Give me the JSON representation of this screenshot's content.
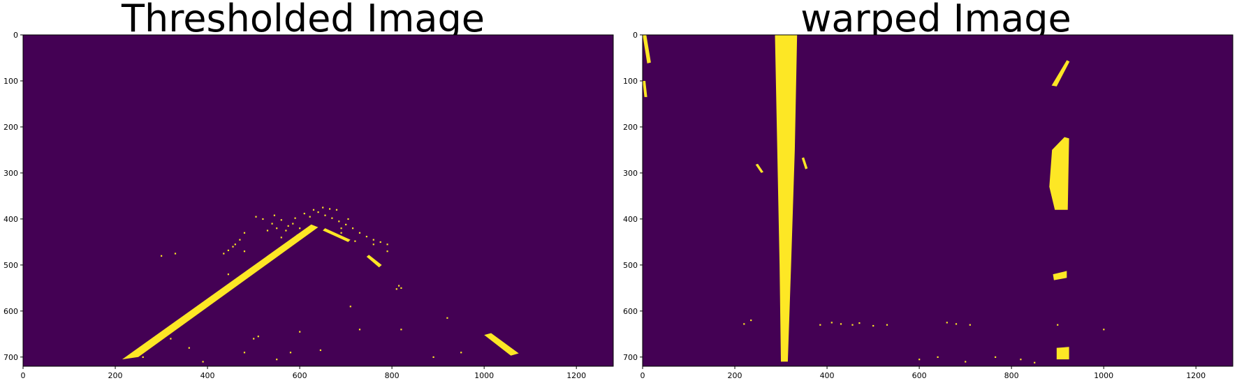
{
  "colors": {
    "background": "#440154",
    "foreground": "#fde725",
    "axis": "#000000"
  },
  "chart_data": [
    {
      "type": "heatmap",
      "title": "Thresholded Image",
      "colormap": "viridis",
      "binary": true,
      "xlim": [
        0,
        1280
      ],
      "ylim": [
        720,
        0
      ],
      "y_inverted": true,
      "xticks": [
        0,
        200,
        400,
        600,
        800,
        1000,
        1200
      ],
      "yticks": [
        0,
        100,
        200,
        300,
        400,
        500,
        600,
        700
      ],
      "xtick_labels": [
        "0",
        "200",
        "400",
        "600",
        "800",
        "1000",
        "1200"
      ],
      "ytick_labels": [
        "0",
        "100",
        "200",
        "300",
        "400",
        "500",
        "600",
        "700"
      ],
      "grid": false,
      "features": [
        {
          "name": "left lane line",
          "kind": "band",
          "points": [
            [
              215,
              705
            ],
            [
              250,
              700
            ],
            [
              640,
              418
            ],
            [
              625,
              412
            ]
          ]
        },
        {
          "name": "right lane line near",
          "kind": "band",
          "points": [
            [
              1000,
              652
            ],
            [
              1015,
              648
            ],
            [
              1075,
              692
            ],
            [
              1058,
              697
            ]
          ]
        },
        {
          "name": "right lane line far",
          "kind": "band",
          "points": [
            [
              650,
              425
            ],
            [
              655,
              420
            ],
            [
              710,
              445
            ],
            [
              705,
              450
            ]
          ]
        },
        {
          "name": "right lane dash",
          "kind": "band",
          "points": [
            [
              745,
              482
            ],
            [
              750,
              478
            ],
            [
              778,
              500
            ],
            [
              772,
              505
            ]
          ]
        },
        {
          "name": "horizon cluster",
          "kind": "scatter",
          "points": [
            [
              505,
              395
            ],
            [
              520,
              400
            ],
            [
              540,
              410
            ],
            [
              560,
              402
            ],
            [
              575,
              415
            ],
            [
              590,
              398
            ],
            [
              600,
              420
            ],
            [
              610,
              388
            ],
            [
              622,
              395
            ],
            [
              630,
              380
            ],
            [
              640,
              385
            ],
            [
              655,
              392
            ],
            [
              670,
              398
            ],
            [
              685,
              405
            ],
            [
              700,
              412
            ],
            [
              715,
              420
            ],
            [
              730,
              430
            ],
            [
              745,
              438
            ],
            [
              760,
              445
            ],
            [
              775,
              450
            ],
            [
              790,
              455
            ],
            [
              480,
              430
            ],
            [
              470,
              445
            ],
            [
              455,
              460
            ],
            [
              445,
              468
            ],
            [
              435,
              475
            ],
            [
              530,
              425
            ],
            [
              550,
              420
            ],
            [
              570,
              425
            ],
            [
              595,
              435
            ],
            [
              612,
              430
            ],
            [
              650,
              375
            ],
            [
              665,
              378
            ],
            [
              680,
              380
            ],
            [
              460,
              455
            ],
            [
              545,
              392
            ],
            [
              585,
              410
            ],
            [
              625,
              425
            ],
            [
              690,
              430
            ],
            [
              720,
              448
            ],
            [
              820,
              550
            ],
            [
              815,
              545
            ],
            [
              810,
              552
            ],
            [
              300,
              480
            ],
            [
              330,
              475
            ],
            [
              480,
              470
            ],
            [
              560,
              440
            ],
            [
              690,
              420
            ],
            [
              705,
              400
            ],
            [
              760,
              455
            ],
            [
              790,
              470
            ]
          ]
        },
        {
          "name": "noise specks",
          "kind": "scatter",
          "points": [
            [
              445,
              520
            ],
            [
              500,
              660
            ],
            [
              510,
              655
            ],
            [
              360,
              680
            ],
            [
              730,
              640
            ],
            [
              920,
              615
            ],
            [
              710,
              590
            ],
            [
              645,
              685
            ],
            [
              320,
              660
            ],
            [
              580,
              690
            ],
            [
              260,
              700
            ],
            [
              390,
              710
            ],
            [
              600,
              645
            ],
            [
              480,
              690
            ],
            [
              550,
              705
            ],
            [
              890,
              700
            ],
            [
              820,
              640
            ],
            [
              950,
              690
            ]
          ]
        }
      ]
    },
    {
      "type": "heatmap",
      "title": "warped Image",
      "colormap": "viridis",
      "binary": true,
      "xlim": [
        0,
        1280
      ],
      "ylim": [
        720,
        0
      ],
      "y_inverted": true,
      "xticks": [
        0,
        200,
        400,
        600,
        800,
        1000,
        1200
      ],
      "yticks": [
        0,
        100,
        200,
        300,
        400,
        500,
        600,
        700
      ],
      "xtick_labels": [
        "0",
        "200",
        "400",
        "600",
        "800",
        "1000",
        "1200"
      ],
      "ytick_labels": [
        "0",
        "100",
        "200",
        "300",
        "400",
        "500",
        "600",
        "700"
      ],
      "grid": false,
      "features": [
        {
          "name": "left lane line",
          "kind": "band",
          "points": [
            [
              287,
              0
            ],
            [
              335,
              0
            ],
            [
              330,
              250
            ],
            [
              322,
              500
            ],
            [
              315,
              710
            ],
            [
              300,
              710
            ],
            [
              297,
              500
            ],
            [
              292,
              250
            ]
          ]
        },
        {
          "name": "right lane upper dash",
          "kind": "band",
          "points": [
            [
              887,
              110
            ],
            [
              920,
              55
            ],
            [
              926,
              58
            ],
            [
              898,
              112
            ]
          ]
        },
        {
          "name": "right lane middle segment",
          "kind": "band",
          "points": [
            [
              888,
              250
            ],
            [
              915,
              222
            ],
            [
              925,
              225
            ],
            [
              922,
              380
            ],
            [
              894,
              380
            ],
            [
              882,
              330
            ]
          ]
        },
        {
          "name": "right lane small dash",
          "kind": "band",
          "points": [
            [
              890,
              520
            ],
            [
              920,
              513
            ],
            [
              920,
              528
            ],
            [
              892,
              533
            ]
          ]
        },
        {
          "name": "right lane bottom blob",
          "kind": "band",
          "points": [
            [
              898,
              680
            ],
            [
              925,
              678
            ],
            [
              925,
              705
            ],
            [
              898,
              705
            ]
          ]
        },
        {
          "name": "left edge streak",
          "kind": "band",
          "points": [
            [
              0,
              0
            ],
            [
              8,
              0
            ],
            [
              18,
              60
            ],
            [
              10,
              62
            ]
          ]
        },
        {
          "name": "left edge streak lower",
          "kind": "band",
          "points": [
            [
              0,
              100
            ],
            [
              6,
              100
            ],
            [
              10,
              135
            ],
            [
              4,
              135
            ]
          ]
        },
        {
          "name": "debris left",
          "kind": "band",
          "points": [
            [
              245,
              282
            ],
            [
              250,
              280
            ],
            [
              262,
              298
            ],
            [
              257,
              300
            ]
          ]
        },
        {
          "name": "debris right",
          "kind": "band",
          "points": [
            [
              345,
              268
            ],
            [
              350,
              266
            ],
            [
              358,
              290
            ],
            [
              353,
              292
            ]
          ]
        },
        {
          "name": "noise specks",
          "kind": "scatter",
          "points": [
            [
              220,
              628
            ],
            [
              385,
              630
            ],
            [
              410,
              625
            ],
            [
              430,
              628
            ],
            [
              455,
              630
            ],
            [
              470,
              626
            ],
            [
              500,
              632
            ],
            [
              600,
              705
            ],
            [
              640,
              700
            ],
            [
              700,
              710
            ],
            [
              765,
              700
            ],
            [
              820,
              705
            ],
            [
              850,
              712
            ],
            [
              900,
              630
            ],
            [
              660,
              625
            ],
            [
              680,
              628
            ],
            [
              530,
              630
            ],
            [
              235,
              620
            ],
            [
              710,
              630
            ],
            [
              1000,
              640
            ]
          ]
        }
      ]
    }
  ]
}
